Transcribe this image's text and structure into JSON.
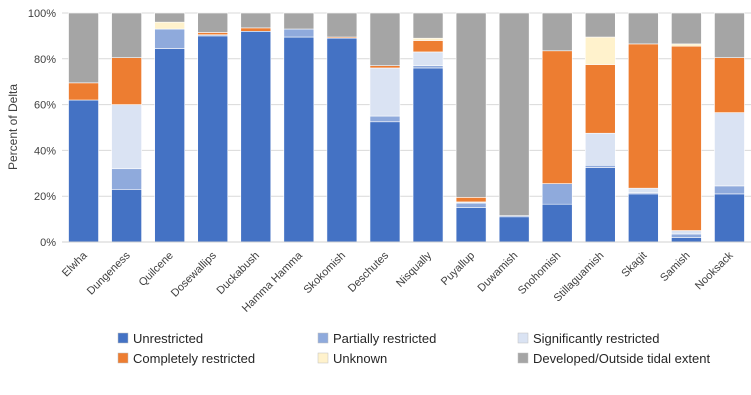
{
  "chart_data": {
    "type": "bar",
    "stacked": true,
    "ylabel": "Percent of Delta",
    "ylim": [
      0,
      100
    ],
    "yticks": [
      "0%",
      "20%",
      "40%",
      "60%",
      "80%",
      "100%"
    ],
    "grid": "horizontal",
    "legend_position": "bottom",
    "categories": [
      "Elwha",
      "Dungeness",
      "Quilcene",
      "Dosewallips",
      "Duckabush",
      "Hamma Hamma",
      "Skokomish",
      "Deschutes",
      "Nisqually",
      "Puyallup",
      "Duwamish",
      "Snohomish",
      "Stillaguamish",
      "Skagit",
      "Samish",
      "Nooksack"
    ],
    "series": [
      {
        "name": "Unrestricted",
        "color": "#4472C4",
        "values": [
          62,
          23,
          84.5,
          90,
          92,
          89.5,
          89,
          52.5,
          76,
          15,
          11,
          16.5,
          32.5,
          21,
          2,
          21
        ]
      },
      {
        "name": "Partially restricted",
        "color": "#8FAADC",
        "values": [
          0,
          9,
          8.5,
          0.5,
          0,
          3.5,
          0,
          2.5,
          1,
          2,
          0.5,
          9,
          1,
          0.5,
          1.5,
          3.5
        ]
      },
      {
        "name": "Significantly restricted",
        "color": "#DAE3F3",
        "values": [
          0,
          28,
          0,
          0,
          0,
          0,
          0,
          21,
          6,
          0.5,
          0,
          0,
          14,
          2,
          1.5,
          32
        ]
      },
      {
        "name": "Completely restricted",
        "color": "#ED7D31",
        "values": [
          7.5,
          20.5,
          0,
          1,
          1.5,
          0,
          0.5,
          1,
          5,
          2,
          0,
          58,
          30,
          63,
          80.5,
          24
        ]
      },
      {
        "name": "Unknown",
        "color": "#FFF2CC",
        "values": [
          0,
          0,
          3,
          0,
          0,
          0,
          0,
          0,
          1,
          0,
          0,
          0,
          12,
          0,
          1,
          0
        ]
      },
      {
        "name": "Developed/Outside tidal extent",
        "color": "#A5A5A5",
        "values": [
          30.5,
          19.5,
          4,
          8.5,
          6.5,
          7,
          10.5,
          23,
          11,
          80.5,
          88.5,
          16.5,
          10.5,
          13.5,
          13.5,
          19.5
        ]
      }
    ]
  }
}
